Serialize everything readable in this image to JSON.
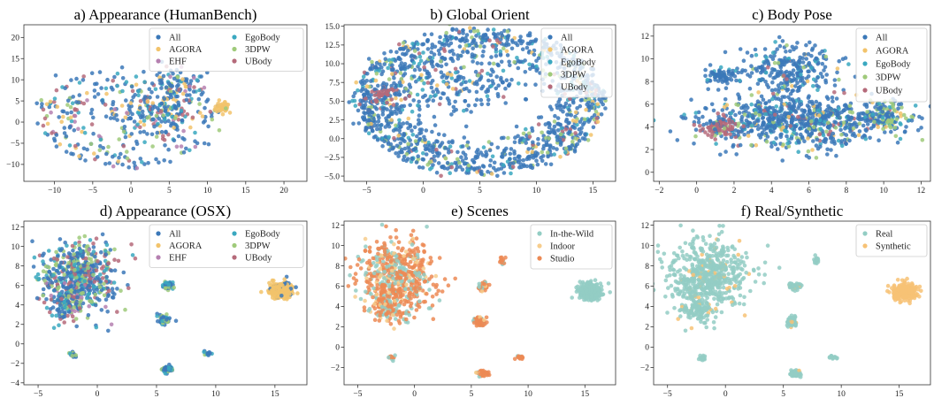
{
  "chart_data": [
    {
      "id": "a",
      "type": "scatter",
      "title": "a) Appearance (HumanBench)",
      "xlim": [
        -14,
        23
      ],
      "ylim": [
        -14,
        23
      ],
      "xticks": [
        -10,
        -5,
        0,
        5,
        10,
        15,
        20
      ],
      "yticks": [
        -10,
        -5,
        0,
        5,
        10,
        15,
        20
      ],
      "legend_position": "top-right",
      "legend_columns": 2,
      "series": [
        {
          "name": "All",
          "color": "#3b78b8"
        },
        {
          "name": "AGORA",
          "color": "#f2c36b"
        },
        {
          "name": "EHF",
          "color": "#b580b0"
        },
        {
          "name": "EgoBody",
          "color": "#3aa8c0"
        },
        {
          "name": "3DPW",
          "color": "#9fca7a"
        },
        {
          "name": "UBody",
          "color": "#b56a7a"
        }
      ],
      "clusters": [
        {
          "cx": 0,
          "cy": 1,
          "rx": 12,
          "ry": 12,
          "n": 260,
          "shape": "uniform",
          "weights": [
            0.55,
            0.1,
            0.05,
            0.1,
            0.1,
            0.1
          ]
        },
        {
          "cx": 4,
          "cy": 3,
          "rx": 5,
          "ry": 5,
          "n": 160,
          "shape": "gauss",
          "weights": [
            0.5,
            0.1,
            0.05,
            0.15,
            0.1,
            0.1
          ]
        },
        {
          "cx": 6,
          "cy": 9,
          "rx": 4,
          "ry": 3,
          "n": 70,
          "shape": "gauss",
          "weights": [
            0.5,
            0.1,
            0.05,
            0.15,
            0.1,
            0.1
          ]
        },
        {
          "cx": 12,
          "cy": 3.5,
          "rx": 1.2,
          "ry": 1.2,
          "n": 40,
          "shape": "gauss",
          "weights": [
            0.1,
            0.8,
            0,
            0.05,
            0.05,
            0
          ]
        },
        {
          "cx": -9,
          "cy": 2,
          "rx": 4,
          "ry": 6,
          "n": 45,
          "shape": "gauss",
          "weights": [
            0.4,
            0.1,
            0.1,
            0.1,
            0.1,
            0.2
          ]
        }
      ]
    },
    {
      "id": "b",
      "type": "scatter",
      "title": "b) Global Orient",
      "xlim": [
        -7,
        17
      ],
      "ylim": [
        -5.7,
        15.2
      ],
      "xticks": [
        -5,
        0,
        5,
        10,
        15
      ],
      "yticks": [
        -5.0,
        -2.5,
        0.0,
        2.5,
        5.0,
        7.5,
        10.0,
        12.5,
        15.0
      ],
      "ytick_decimals": 1,
      "legend_position": "top-right",
      "legend_columns": 1,
      "series": [
        {
          "name": "All",
          "color": "#3b78b8"
        },
        {
          "name": "AGORA",
          "color": "#f2c36b"
        },
        {
          "name": "EgoBody",
          "color": "#3aa8c0"
        },
        {
          "name": "3DPW",
          "color": "#9fca7a"
        },
        {
          "name": "UBody",
          "color": "#b56a7a"
        }
      ],
      "clusters": [
        {
          "cx": 5,
          "cy": 5,
          "rx": 11,
          "ry": 9.7,
          "n": 1300,
          "shape": "ring",
          "inner": 0.5,
          "weights": [
            0.72,
            0.05,
            0.1,
            0.08,
            0.05
          ]
        },
        {
          "cx": 3,
          "cy": 7,
          "rx": 6,
          "ry": 4,
          "n": 200,
          "shape": "gauss",
          "weights": [
            0.75,
            0.05,
            0.1,
            0.05,
            0.05
          ]
        },
        {
          "cx": -3.5,
          "cy": 6,
          "rx": 1.5,
          "ry": 1.2,
          "n": 40,
          "shape": "gauss",
          "weights": [
            0.2,
            0,
            0,
            0,
            0.8
          ]
        }
      ]
    },
    {
      "id": "c",
      "type": "scatter",
      "title": "c) Body Pose",
      "xlim": [
        -2.3,
        12.5
      ],
      "ylim": [
        -0.8,
        13
      ],
      "xticks": [
        -2,
        0,
        2,
        4,
        6,
        8,
        10,
        12
      ],
      "yticks": [
        0,
        2,
        4,
        6,
        8,
        10,
        12
      ],
      "legend_position": "top-right",
      "legend_columns": 1,
      "series": [
        {
          "name": "All",
          "color": "#3b78b8"
        },
        {
          "name": "AGORA",
          "color": "#f2c36b"
        },
        {
          "name": "EgoBody",
          "color": "#3aa8c0"
        },
        {
          "name": "3DPW",
          "color": "#9fca7a"
        },
        {
          "name": "UBody",
          "color": "#b56a7a"
        }
      ],
      "clusters": [
        {
          "cx": 5.5,
          "cy": 4.5,
          "rx": 5,
          "ry": 2.2,
          "n": 750,
          "shape": "gauss",
          "weights": [
            0.72,
            0.04,
            0.1,
            0.08,
            0.06
          ]
        },
        {
          "cx": 5,
          "cy": 9,
          "rx": 2.5,
          "ry": 2.5,
          "n": 260,
          "shape": "gauss",
          "weights": [
            0.8,
            0.02,
            0.1,
            0.05,
            0.03
          ]
        },
        {
          "cx": 1.5,
          "cy": 8.5,
          "rx": 1,
          "ry": 0.8,
          "n": 70,
          "shape": "gauss",
          "weights": [
            0.9,
            0,
            0.05,
            0.05,
            0
          ]
        },
        {
          "cx": 1.2,
          "cy": 4,
          "rx": 1,
          "ry": 1,
          "n": 100,
          "shape": "gauss",
          "weights": [
            0.2,
            0,
            0.05,
            0.05,
            0.7
          ]
        },
        {
          "cx": 10,
          "cy": 5,
          "rx": 1.3,
          "ry": 1.2,
          "n": 100,
          "shape": "gauss",
          "weights": [
            0.4,
            0.1,
            0.1,
            0.4,
            0
          ]
        }
      ]
    },
    {
      "id": "d",
      "type": "scatter",
      "title": "d) Appearance (OSX)",
      "xlim": [
        -6.2,
        17.7
      ],
      "ylim": [
        -4.2,
        12.6
      ],
      "xticks": [
        -5,
        0,
        5,
        10,
        15
      ],
      "yticks": [
        -4,
        -2,
        0,
        2,
        4,
        6,
        8,
        10,
        12
      ],
      "legend_position": "top-right",
      "legend_columns": 2,
      "series": [
        {
          "name": "All",
          "color": "#3b78b8"
        },
        {
          "name": "AGORA",
          "color": "#f2c36b"
        },
        {
          "name": "EHF",
          "color": "#b580b0"
        },
        {
          "name": "EgoBody",
          "color": "#3aa8c0"
        },
        {
          "name": "3DPW",
          "color": "#9fca7a"
        },
        {
          "name": "UBody",
          "color": "#b56a7a"
        }
      ],
      "clusters": [
        {
          "cx": -1.5,
          "cy": 7,
          "rx": 3.2,
          "ry": 3.5,
          "n": 550,
          "shape": "gauss",
          "weights": [
            0.45,
            0,
            0.05,
            0.15,
            0.2,
            0.15
          ]
        },
        {
          "cx": -2.5,
          "cy": 4,
          "rx": 1.5,
          "ry": 1.5,
          "n": 120,
          "shape": "gauss",
          "weights": [
            0.45,
            0,
            0.05,
            0.15,
            0.2,
            0.15
          ]
        },
        {
          "cx": 15.5,
          "cy": 5.5,
          "rx": 1,
          "ry": 0.8,
          "n": 260,
          "shape": "gauss",
          "weights": [
            0.15,
            0.85,
            0,
            0,
            0,
            0
          ]
        },
        {
          "cx": 6,
          "cy": 6,
          "rx": 0.5,
          "ry": 0.4,
          "n": 50,
          "shape": "gauss",
          "weights": [
            0.5,
            0,
            0,
            0.3,
            0.2,
            0
          ]
        },
        {
          "cx": 5.7,
          "cy": 2.5,
          "rx": 0.5,
          "ry": 0.5,
          "n": 60,
          "shape": "gauss",
          "weights": [
            0.5,
            0,
            0,
            0.3,
            0.2,
            0
          ]
        },
        {
          "cx": 6,
          "cy": -2.6,
          "rx": 0.5,
          "ry": 0.3,
          "n": 50,
          "shape": "gauss",
          "weights": [
            0.5,
            0,
            0,
            0.3,
            0.2,
            0
          ]
        },
        {
          "cx": 9.3,
          "cy": -1,
          "rx": 0.3,
          "ry": 0.2,
          "n": 15,
          "shape": "gauss",
          "weights": [
            0.5,
            0,
            0,
            0.3,
            0.2,
            0
          ]
        },
        {
          "cx": -2,
          "cy": -1,
          "rx": 0.3,
          "ry": 0.3,
          "n": 15,
          "shape": "gauss",
          "weights": [
            0.5,
            0,
            0,
            0.3,
            0.2,
            0
          ]
        }
      ]
    },
    {
      "id": "e",
      "type": "scatter",
      "title": "e) Scenes",
      "xlim": [
        -6.2,
        17.7
      ],
      "ylim": [
        -3.7,
        12.4
      ],
      "xticks": [
        -5,
        0,
        5,
        10,
        15
      ],
      "yticks": [
        -2,
        0,
        2,
        4,
        6,
        8,
        10,
        12
      ],
      "legend_position": "top-right",
      "legend_columns": 1,
      "series": [
        {
          "name": "In-the-Wild",
          "color": "#93cdc4"
        },
        {
          "name": "Indoor",
          "color": "#f7cd8c"
        },
        {
          "name": "Studio",
          "color": "#ec8a55"
        }
      ],
      "clusters": [
        {
          "cx": -1.5,
          "cy": 7,
          "rx": 3.2,
          "ry": 3.5,
          "n": 550,
          "shape": "gauss",
          "weights": [
            0.25,
            0.1,
            0.65
          ]
        },
        {
          "cx": -2.5,
          "cy": 4,
          "rx": 1.5,
          "ry": 1.5,
          "n": 120,
          "shape": "gauss",
          "weights": [
            0.3,
            0.1,
            0.6
          ]
        },
        {
          "cx": 15.5,
          "cy": 5.5,
          "rx": 1,
          "ry": 0.8,
          "n": 260,
          "shape": "gauss",
          "weights": [
            1,
            0,
            0
          ]
        },
        {
          "cx": 6,
          "cy": 6,
          "rx": 0.5,
          "ry": 0.4,
          "n": 50,
          "shape": "gauss",
          "weights": [
            0.2,
            0.2,
            0.6
          ]
        },
        {
          "cx": 5.7,
          "cy": 2.5,
          "rx": 0.5,
          "ry": 0.5,
          "n": 60,
          "shape": "gauss",
          "weights": [
            0.1,
            0.1,
            0.8
          ]
        },
        {
          "cx": 6,
          "cy": -2.6,
          "rx": 0.5,
          "ry": 0.3,
          "n": 50,
          "shape": "gauss",
          "weights": [
            0.1,
            0.1,
            0.8
          ]
        },
        {
          "cx": 9.3,
          "cy": -1,
          "rx": 0.3,
          "ry": 0.2,
          "n": 15,
          "shape": "gauss",
          "weights": [
            0.2,
            0,
            0.8
          ]
        },
        {
          "cx": 7.8,
          "cy": 8.5,
          "rx": 0.3,
          "ry": 0.4,
          "n": 15,
          "shape": "gauss",
          "weights": [
            0.2,
            0,
            0.8
          ]
        },
        {
          "cx": -2,
          "cy": -1,
          "rx": 0.3,
          "ry": 0.3,
          "n": 15,
          "shape": "gauss",
          "weights": [
            0.3,
            0,
            0.7
          ]
        }
      ]
    },
    {
      "id": "f",
      "type": "scatter",
      "title": "f) Real/Synthetic",
      "xlim": [
        -6.2,
        17.7
      ],
      "ylim": [
        -3.7,
        12.4
      ],
      "xticks": [
        -5,
        0,
        5,
        10,
        15
      ],
      "yticks": [
        -2,
        0,
        2,
        4,
        6,
        8,
        10,
        12
      ],
      "legend_position": "top-right",
      "legend_columns": 1,
      "series": [
        {
          "name": "Real",
          "color": "#93cdc4"
        },
        {
          "name": "Synthetic",
          "color": "#f7c275"
        }
      ],
      "clusters": [
        {
          "cx": -1.5,
          "cy": 7,
          "rx": 3.2,
          "ry": 3.5,
          "n": 550,
          "shape": "gauss",
          "weights": [
            0.92,
            0.08
          ]
        },
        {
          "cx": -2.5,
          "cy": 4,
          "rx": 1.5,
          "ry": 1.5,
          "n": 120,
          "shape": "gauss",
          "weights": [
            0.95,
            0.05
          ]
        },
        {
          "cx": 15.5,
          "cy": 5.5,
          "rx": 1,
          "ry": 0.8,
          "n": 260,
          "shape": "gauss",
          "weights": [
            0,
            1
          ]
        },
        {
          "cx": 6,
          "cy": 6,
          "rx": 0.5,
          "ry": 0.4,
          "n": 50,
          "shape": "gauss",
          "weights": [
            0.9,
            0.1
          ]
        },
        {
          "cx": 5.7,
          "cy": 2.5,
          "rx": 0.5,
          "ry": 0.5,
          "n": 60,
          "shape": "gauss",
          "weights": [
            0.9,
            0.1
          ]
        },
        {
          "cx": 6,
          "cy": -2.6,
          "rx": 0.5,
          "ry": 0.3,
          "n": 50,
          "shape": "gauss",
          "weights": [
            0.95,
            0.05
          ]
        },
        {
          "cx": 9.3,
          "cy": -1,
          "rx": 0.3,
          "ry": 0.2,
          "n": 15,
          "shape": "gauss",
          "weights": [
            1,
            0
          ]
        },
        {
          "cx": 7.8,
          "cy": 8.5,
          "rx": 0.3,
          "ry": 0.4,
          "n": 15,
          "shape": "gauss",
          "weights": [
            1,
            0
          ]
        },
        {
          "cx": -2,
          "cy": -1,
          "rx": 0.3,
          "ry": 0.3,
          "n": 15,
          "shape": "gauss",
          "weights": [
            1,
            0
          ]
        }
      ]
    }
  ]
}
